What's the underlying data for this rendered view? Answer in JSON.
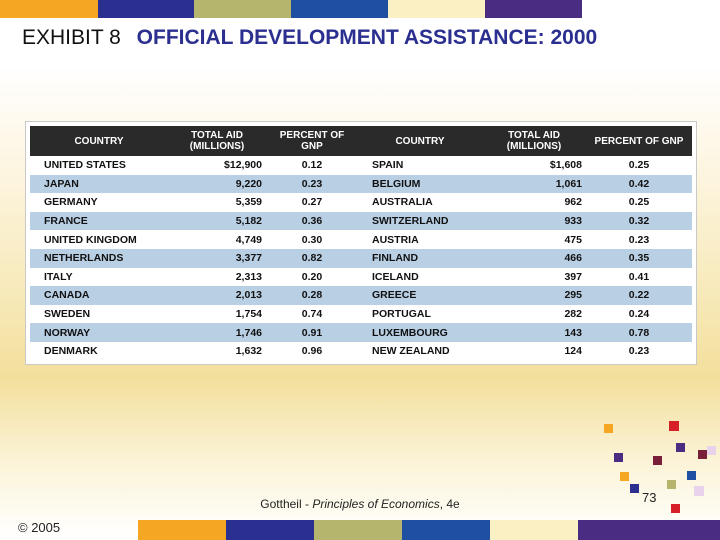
{
  "slide": {
    "title_lead": "EXHIBIT 8",
    "title_main": "OFFICIAL DEVELOPMENT ASSISTANCE: 2000",
    "copyright": "© 2005",
    "citation_author": "Gottheil - ",
    "citation_book": "Principles of Economics",
    "citation_edition": ", 4e",
    "page_number": "73"
  },
  "colors": {
    "accent_orange": "#f5a623",
    "accent_navy": "#2b2f8f",
    "accent_olive": "#b5b56e",
    "accent_blue": "#1e4fa0",
    "accent_cream": "#fbf0c4",
    "accent_purple": "#4a2c82",
    "deco_red": "#d61f26",
    "deco_maroon": "#7a1f3a",
    "row_blue": "#b9cfe4"
  },
  "table": {
    "headers": [
      "COUNTRY",
      "TOTAL AID (MILLIONS)",
      "PERCENT OF GNP",
      "COUNTRY",
      "TOTAL AID (MILLIONS)",
      "PERCENT OF GNP"
    ],
    "rows": [
      [
        "UNITED STATES",
        "$12,900",
        "0.12",
        "SPAIN",
        "$1,608",
        "0.25"
      ],
      [
        "JAPAN",
        "9,220",
        "0.23",
        "BELGIUM",
        "1,061",
        "0.42"
      ],
      [
        "GERMANY",
        "5,359",
        "0.27",
        "AUSTRALIA",
        "962",
        "0.25"
      ],
      [
        "FRANCE",
        "5,182",
        "0.36",
        "SWITZERLAND",
        "933",
        "0.32"
      ],
      [
        "UNITED KINGDOM",
        "4,749",
        "0.30",
        "AUSTRIA",
        "475",
        "0.23"
      ],
      [
        "NETHERLANDS",
        "3,377",
        "0.82",
        "FINLAND",
        "466",
        "0.35"
      ],
      [
        "ITALY",
        "2,313",
        "0.20",
        "ICELAND",
        "397",
        "0.41"
      ],
      [
        "CANADA",
        "2,013",
        "0.28",
        "GREECE",
        "295",
        "0.22"
      ],
      [
        "SWEDEN",
        "1,754",
        "0.74",
        "PORTUGAL",
        "282",
        "0.24"
      ],
      [
        "NORWAY",
        "1,746",
        "0.91",
        "LUXEMBOURG",
        "143",
        "0.78"
      ],
      [
        "DENMARK",
        "1,632",
        "0.96",
        "NEW ZEALAND",
        "124",
        "0.23"
      ]
    ]
  }
}
